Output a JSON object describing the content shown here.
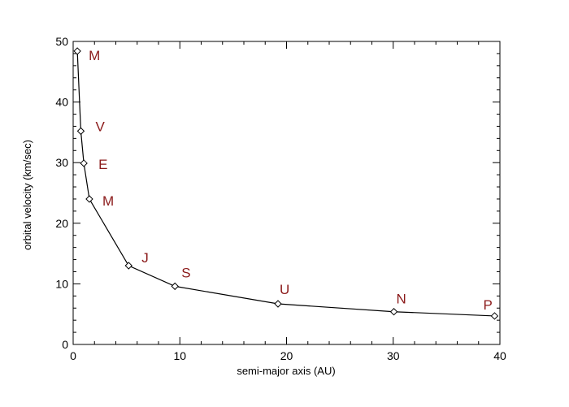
{
  "chart_data": {
    "type": "line",
    "title": "",
    "xlabel": "semi-major axis (AU)",
    "ylabel": "orbital velocity (km/sec)",
    "xlim": [
      0,
      40
    ],
    "ylim": [
      0,
      50
    ],
    "x_ticks": [
      0,
      10,
      20,
      30,
      40
    ],
    "y_ticks": [
      0,
      10,
      20,
      30,
      40,
      50
    ],
    "grid": false,
    "marker": "diamond",
    "label_color": "#8b1a1a",
    "line_color": "#000000",
    "series": [
      {
        "points": [
          {
            "x": 0.39,
            "y": 48.4,
            "label": "M"
          },
          {
            "x": 0.72,
            "y": 35.2,
            "label": "V"
          },
          {
            "x": 1.0,
            "y": 29.9,
            "label": "E"
          },
          {
            "x": 1.52,
            "y": 24.0,
            "label": "M"
          },
          {
            "x": 5.2,
            "y": 13.0,
            "label": "J"
          },
          {
            "x": 9.54,
            "y": 9.6,
            "label": "S"
          },
          {
            "x": 19.2,
            "y": 6.7,
            "label": "U"
          },
          {
            "x": 30.06,
            "y": 5.4,
            "label": "N"
          },
          {
            "x": 39.5,
            "y": 4.7,
            "label": "P"
          }
        ]
      }
    ]
  }
}
